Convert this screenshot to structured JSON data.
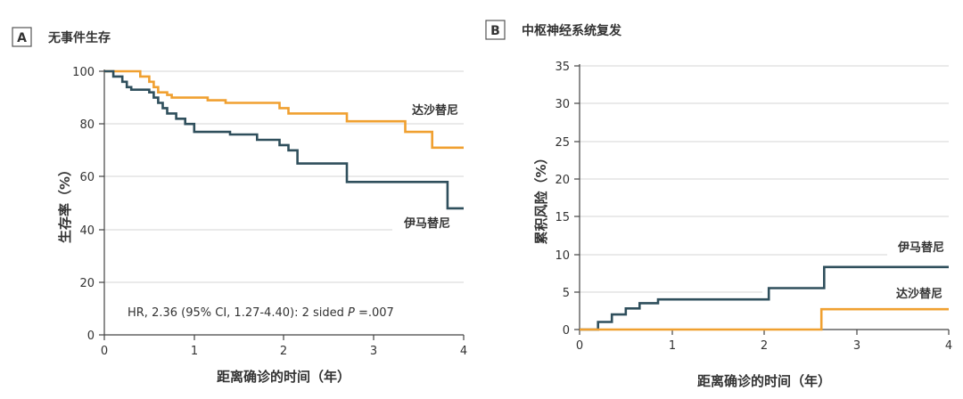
{
  "chart_data": [
    {
      "id": "A",
      "type": "line",
      "panel_label": "A",
      "title": "无事件生存",
      "xlabel": "距离确诊的时间（年）",
      "ylabel": "生存率（%）",
      "xlim": [
        0,
        4
      ],
      "ylim": [
        0,
        100
      ],
      "x_ticks": [
        0,
        1,
        2,
        3,
        4
      ],
      "y_ticks": [
        0,
        20,
        40,
        60,
        80,
        100
      ],
      "grid": "horizontal",
      "step": true,
      "annotation": {
        "prefix": "HR, 2.36 (95% CI, 1.27-4.40): 2 sided ",
        "italic": "P",
        "suffix": " =.007"
      },
      "series": [
        {
          "name": "达沙替尼",
          "color": "#f0a030",
          "x": [
            0,
            0.4,
            0.5,
            0.55,
            0.6,
            0.7,
            0.75,
            1.15,
            1.35,
            1.5,
            1.95,
            2.05,
            2.3,
            2.7,
            3.35,
            3.65,
            4.0
          ],
          "y": [
            100,
            98,
            96,
            94,
            92,
            91,
            90,
            89,
            88,
            88,
            86,
            84,
            84,
            81,
            77,
            71,
            71
          ]
        },
        {
          "name": "伊马替尼",
          "color": "#2f4f5c",
          "x": [
            0,
            0.1,
            0.2,
            0.25,
            0.3,
            0.5,
            0.55,
            0.6,
            0.65,
            0.7,
            0.8,
            0.9,
            1.0,
            1.4,
            1.7,
            1.95,
            2.05,
            2.15,
            2.4,
            2.7,
            3.82,
            4.0
          ],
          "y": [
            100,
            98,
            96,
            94,
            93,
            92,
            90,
            88,
            86,
            84,
            82,
            80,
            77,
            76,
            74,
            72,
            70,
            65,
            65,
            58,
            48,
            48
          ]
        }
      ]
    },
    {
      "id": "B",
      "type": "line",
      "panel_label": "B",
      "title": "中枢神经系统复发",
      "xlabel": "距离确诊的时间（年）",
      "ylabel": "累积风险（%）",
      "xlim": [
        0,
        4
      ],
      "ylim": [
        0,
        35
      ],
      "x_ticks": [
        0,
        1,
        2,
        3,
        4
      ],
      "y_ticks": [
        0,
        5,
        10,
        15,
        20,
        25,
        30,
        35
      ],
      "grid": "horizontal",
      "step": true,
      "series": [
        {
          "name": "伊马替尼",
          "color": "#2f4f5c",
          "x": [
            0,
            0.2,
            0.35,
            0.5,
            0.65,
            0.85,
            2.05,
            2.65,
            4.0
          ],
          "y": [
            0,
            1,
            2,
            2.8,
            3.5,
            4.0,
            5.5,
            8.3,
            8.3
          ]
        },
        {
          "name": "达沙替尼",
          "color": "#f0a030",
          "x": [
            0,
            2.62,
            4.0
          ],
          "y": [
            0,
            2.7,
            2.7
          ]
        }
      ]
    }
  ]
}
